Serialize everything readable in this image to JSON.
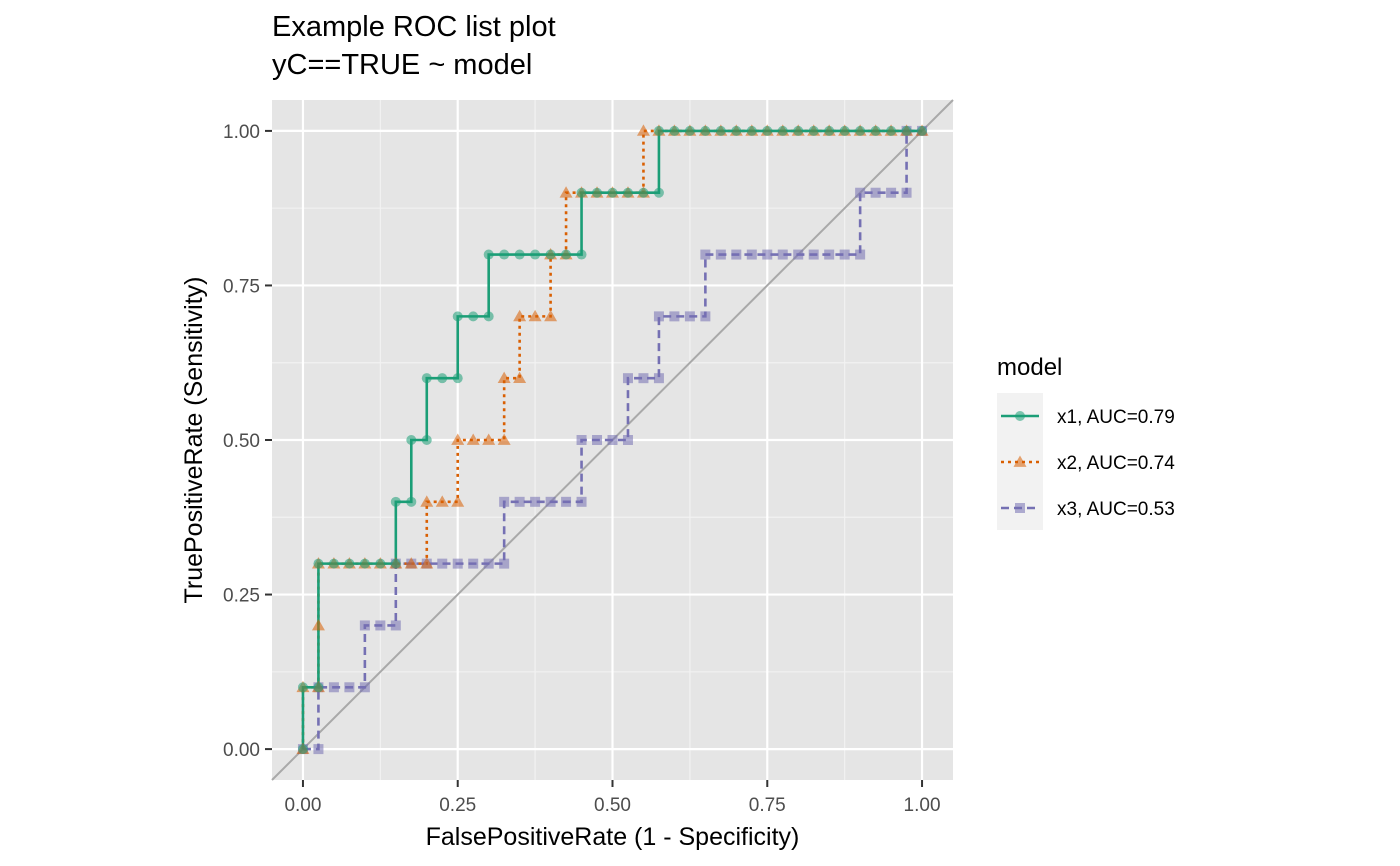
{
  "chart_data": {
    "type": "line",
    "title": "Example ROC list plot",
    "subtitle": "yC==TRUE ~ model",
    "xlabel": "FalsePositiveRate (1 - Specificity)",
    "ylabel": "TruePositiveRate (Sensitivity)",
    "xlim": [
      -0.05,
      1.05
    ],
    "ylim": [
      -0.05,
      1.05
    ],
    "x_ticks": [
      "0.00",
      "0.25",
      "0.50",
      "0.75",
      "1.00"
    ],
    "y_ticks": [
      "0.00",
      "0.25",
      "0.50",
      "0.75",
      "1.00"
    ],
    "grid": true,
    "diagonal_reference_line": true,
    "legend": {
      "title": "model",
      "position": "right"
    },
    "series": [
      {
        "name": "x1, AUC=0.79",
        "color": "#1b9e77",
        "line_style": "solid",
        "marker": "circle",
        "points": [
          [
            0,
            0
          ],
          [
            0,
            0.1
          ],
          [
            0.025,
            0.1
          ],
          [
            0.025,
            0.3
          ],
          [
            0.05,
            0.3
          ],
          [
            0.075,
            0.3
          ],
          [
            0.1,
            0.3
          ],
          [
            0.125,
            0.3
          ],
          [
            0.15,
            0.3
          ],
          [
            0.15,
            0.4
          ],
          [
            0.175,
            0.4
          ],
          [
            0.175,
            0.5
          ],
          [
            0.2,
            0.5
          ],
          [
            0.2,
            0.6
          ],
          [
            0.225,
            0.6
          ],
          [
            0.25,
            0.6
          ],
          [
            0.25,
            0.7
          ],
          [
            0.275,
            0.7
          ],
          [
            0.3,
            0.7
          ],
          [
            0.3,
            0.8
          ],
          [
            0.325,
            0.8
          ],
          [
            0.35,
            0.8
          ],
          [
            0.375,
            0.8
          ],
          [
            0.4,
            0.8
          ],
          [
            0.425,
            0.8
          ],
          [
            0.45,
            0.8
          ],
          [
            0.45,
            0.9
          ],
          [
            0.475,
            0.9
          ],
          [
            0.5,
            0.9
          ],
          [
            0.525,
            0.9
          ],
          [
            0.55,
            0.9
          ],
          [
            0.575,
            0.9
          ],
          [
            0.575,
            1
          ],
          [
            0.6,
            1
          ],
          [
            0.625,
            1
          ],
          [
            0.65,
            1
          ],
          [
            0.675,
            1
          ],
          [
            0.7,
            1
          ],
          [
            0.725,
            1
          ],
          [
            0.75,
            1
          ],
          [
            0.775,
            1
          ],
          [
            0.8,
            1
          ],
          [
            0.825,
            1
          ],
          [
            0.85,
            1
          ],
          [
            0.875,
            1
          ],
          [
            0.9,
            1
          ],
          [
            0.925,
            1
          ],
          [
            0.95,
            1
          ],
          [
            0.975,
            1
          ],
          [
            1,
            1
          ]
        ]
      },
      {
        "name": "x2, AUC=0.74",
        "color": "#d95f02",
        "line_style": "dotted",
        "marker": "triangle",
        "points": [
          [
            0,
            0
          ],
          [
            0,
            0.1
          ],
          [
            0.025,
            0.1
          ],
          [
            0.025,
            0.2
          ],
          [
            0.025,
            0.3
          ],
          [
            0.05,
            0.3
          ],
          [
            0.075,
            0.3
          ],
          [
            0.1,
            0.3
          ],
          [
            0.125,
            0.3
          ],
          [
            0.15,
            0.3
          ],
          [
            0.175,
            0.3
          ],
          [
            0.2,
            0.3
          ],
          [
            0.2,
            0.4
          ],
          [
            0.225,
            0.4
          ],
          [
            0.25,
            0.4
          ],
          [
            0.25,
            0.5
          ],
          [
            0.275,
            0.5
          ],
          [
            0.3,
            0.5
          ],
          [
            0.325,
            0.5
          ],
          [
            0.325,
            0.6
          ],
          [
            0.35,
            0.6
          ],
          [
            0.35,
            0.7
          ],
          [
            0.375,
            0.7
          ],
          [
            0.4,
            0.7
          ],
          [
            0.4,
            0.8
          ],
          [
            0.425,
            0.8
          ],
          [
            0.425,
            0.9
          ],
          [
            0.45,
            0.9
          ],
          [
            0.475,
            0.9
          ],
          [
            0.5,
            0.9
          ],
          [
            0.525,
            0.9
          ],
          [
            0.55,
            0.9
          ],
          [
            0.55,
            1
          ],
          [
            0.575,
            1
          ],
          [
            0.6,
            1
          ],
          [
            0.625,
            1
          ],
          [
            0.65,
            1
          ],
          [
            0.675,
            1
          ],
          [
            0.7,
            1
          ],
          [
            0.725,
            1
          ],
          [
            0.75,
            1
          ],
          [
            0.775,
            1
          ],
          [
            0.8,
            1
          ],
          [
            0.825,
            1
          ],
          [
            0.85,
            1
          ],
          [
            0.875,
            1
          ],
          [
            0.9,
            1
          ],
          [
            0.925,
            1
          ],
          [
            0.95,
            1
          ],
          [
            0.975,
            1
          ],
          [
            1,
            1
          ]
        ]
      },
      {
        "name": "x3, AUC=0.53",
        "color": "#7570b3",
        "line_style": "dashed",
        "marker": "square",
        "points": [
          [
            0,
            0
          ],
          [
            0.025,
            0
          ],
          [
            0.025,
            0.1
          ],
          [
            0.05,
            0.1
          ],
          [
            0.075,
            0.1
          ],
          [
            0.1,
            0.1
          ],
          [
            0.1,
            0.2
          ],
          [
            0.125,
            0.2
          ],
          [
            0.15,
            0.2
          ],
          [
            0.15,
            0.3
          ],
          [
            0.175,
            0.3
          ],
          [
            0.2,
            0.3
          ],
          [
            0.225,
            0.3
          ],
          [
            0.25,
            0.3
          ],
          [
            0.275,
            0.3
          ],
          [
            0.3,
            0.3
          ],
          [
            0.325,
            0.3
          ],
          [
            0.325,
            0.4
          ],
          [
            0.35,
            0.4
          ],
          [
            0.375,
            0.4
          ],
          [
            0.4,
            0.4
          ],
          [
            0.425,
            0.4
          ],
          [
            0.45,
            0.4
          ],
          [
            0.45,
            0.5
          ],
          [
            0.475,
            0.5
          ],
          [
            0.5,
            0.5
          ],
          [
            0.525,
            0.5
          ],
          [
            0.525,
            0.6
          ],
          [
            0.55,
            0.6
          ],
          [
            0.575,
            0.6
          ],
          [
            0.575,
            0.7
          ],
          [
            0.6,
            0.7
          ],
          [
            0.625,
            0.7
          ],
          [
            0.65,
            0.7
          ],
          [
            0.65,
            0.8
          ],
          [
            0.675,
            0.8
          ],
          [
            0.7,
            0.8
          ],
          [
            0.725,
            0.8
          ],
          [
            0.75,
            0.8
          ],
          [
            0.775,
            0.8
          ],
          [
            0.8,
            0.8
          ],
          [
            0.825,
            0.8
          ],
          [
            0.85,
            0.8
          ],
          [
            0.875,
            0.8
          ],
          [
            0.9,
            0.8
          ],
          [
            0.9,
            0.9
          ],
          [
            0.925,
            0.9
          ],
          [
            0.95,
            0.9
          ],
          [
            0.975,
            0.9
          ],
          [
            0.975,
            1
          ],
          [
            1,
            1
          ]
        ]
      }
    ]
  }
}
